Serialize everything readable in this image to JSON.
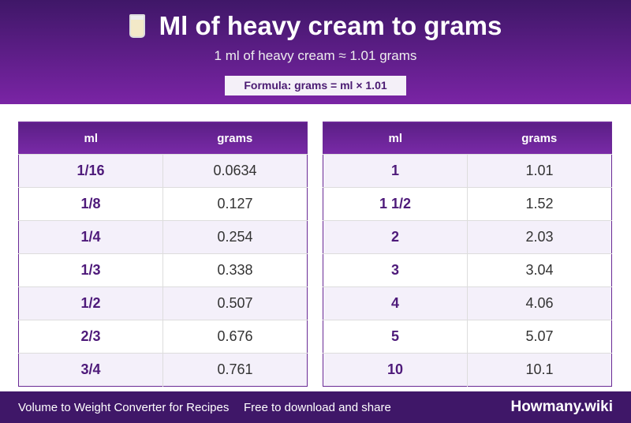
{
  "header": {
    "title": "Ml of heavy cream to grams",
    "subtitle": "1 ml of heavy cream ≈ 1.01 grams",
    "formula": "Formula: grams = ml × 1.01"
  },
  "tables": [
    {
      "columns": [
        "ml",
        "grams"
      ],
      "rows": [
        [
          "1/16",
          "0.0634"
        ],
        [
          "1/8",
          "0.127"
        ],
        [
          "1/4",
          "0.254"
        ],
        [
          "1/3",
          "0.338"
        ],
        [
          "1/2",
          "0.507"
        ],
        [
          "2/3",
          "0.676"
        ],
        [
          "3/4",
          "0.761"
        ]
      ]
    },
    {
      "columns": [
        "ml",
        "grams"
      ],
      "rows": [
        [
          "1",
          "1.01"
        ],
        [
          "1 1/2",
          "1.52"
        ],
        [
          "2",
          "2.03"
        ],
        [
          "3",
          "3.04"
        ],
        [
          "4",
          "4.06"
        ],
        [
          "5",
          "5.07"
        ],
        [
          "10",
          "10.1"
        ]
      ]
    }
  ],
  "footer": {
    "left": "Volume to Weight Converter for Recipes",
    "middle": "Free to download and share",
    "brand": "Howmany.wiki"
  }
}
